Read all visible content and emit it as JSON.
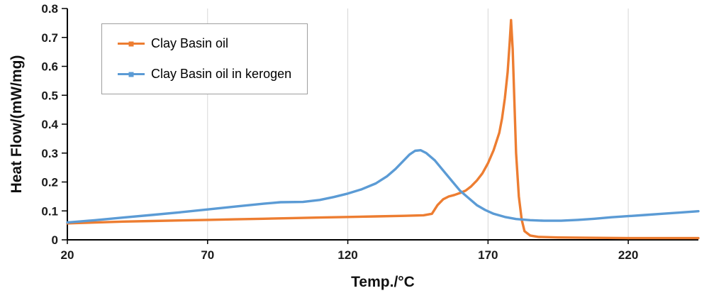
{
  "chart_data": {
    "type": "line",
    "title": "",
    "xlabel": "Temp./°C",
    "ylabel": "Heat Flow/(mW/mg)",
    "xlim": [
      20,
      245
    ],
    "ylim": [
      0,
      0.8
    ],
    "xticks": [
      20,
      70,
      120,
      170,
      220
    ],
    "yticks": [
      0,
      0.1,
      0.2,
      0.3,
      0.4,
      0.5,
      0.6,
      0.7,
      0.8
    ],
    "ytick_labels": [
      "0",
      "0.1",
      "0.2",
      "0.3",
      "0.4",
      "0.5",
      "0.6",
      "0.7",
      "0.8"
    ],
    "grid": "vertical",
    "grid_color": "#d6d6d6",
    "axis_color": "#000000",
    "text_color": "#1a1a1a",
    "legend_position": "top-left",
    "series": [
      {
        "name": "Clay Basin oil",
        "color": "#ED7D31",
        "points": [
          [
            20,
            0.057
          ],
          [
            30,
            0.06
          ],
          [
            40,
            0.063
          ],
          [
            50,
            0.065
          ],
          [
            60,
            0.067
          ],
          [
            70,
            0.069
          ],
          [
            80,
            0.071
          ],
          [
            90,
            0.073
          ],
          [
            100,
            0.075
          ],
          [
            110,
            0.077
          ],
          [
            120,
            0.079
          ],
          [
            130,
            0.081
          ],
          [
            140,
            0.083
          ],
          [
            147,
            0.085
          ],
          [
            150,
            0.09
          ],
          [
            152,
            0.12
          ],
          [
            154,
            0.14
          ],
          [
            156,
            0.15
          ],
          [
            158,
            0.155
          ],
          [
            160,
            0.162
          ],
          [
            162,
            0.17
          ],
          [
            164,
            0.185
          ],
          [
            166,
            0.205
          ],
          [
            168,
            0.23
          ],
          [
            170,
            0.265
          ],
          [
            172,
            0.31
          ],
          [
            174,
            0.37
          ],
          [
            175,
            0.42
          ],
          [
            176,
            0.49
          ],
          [
            177,
            0.58
          ],
          [
            177.7,
            0.68
          ],
          [
            178.2,
            0.76
          ],
          [
            178.8,
            0.66
          ],
          [
            179.4,
            0.48
          ],
          [
            180,
            0.3
          ],
          [
            181,
            0.15
          ],
          [
            182,
            0.07
          ],
          [
            183,
            0.03
          ],
          [
            185,
            0.015
          ],
          [
            188,
            0.01
          ],
          [
            195,
            0.008
          ],
          [
            205,
            0.007
          ],
          [
            220,
            0.006
          ],
          [
            235,
            0.006
          ],
          [
            245,
            0.006
          ]
        ]
      },
      {
        "name": "Clay Basin oil in kerogen",
        "color": "#5B9BD5",
        "points": [
          [
            20,
            0.06
          ],
          [
            30,
            0.068
          ],
          [
            40,
            0.077
          ],
          [
            50,
            0.086
          ],
          [
            60,
            0.095
          ],
          [
            70,
            0.105
          ],
          [
            80,
            0.115
          ],
          [
            90,
            0.125
          ],
          [
            96,
            0.13
          ],
          [
            104,
            0.131
          ],
          [
            110,
            0.138
          ],
          [
            115,
            0.148
          ],
          [
            120,
            0.16
          ],
          [
            125,
            0.175
          ],
          [
            130,
            0.195
          ],
          [
            134,
            0.22
          ],
          [
            137,
            0.245
          ],
          [
            140,
            0.275
          ],
          [
            142,
            0.295
          ],
          [
            144,
            0.308
          ],
          [
            146,
            0.31
          ],
          [
            148,
            0.3
          ],
          [
            151,
            0.275
          ],
          [
            154,
            0.24
          ],
          [
            157,
            0.205
          ],
          [
            160,
            0.17
          ],
          [
            163,
            0.145
          ],
          [
            166,
            0.12
          ],
          [
            169,
            0.103
          ],
          [
            172,
            0.09
          ],
          [
            176,
            0.079
          ],
          [
            180,
            0.072
          ],
          [
            185,
            0.068
          ],
          [
            190,
            0.066
          ],
          [
            196,
            0.066
          ],
          [
            202,
            0.069
          ],
          [
            208,
            0.073
          ],
          [
            214,
            0.078
          ],
          [
            220,
            0.082
          ],
          [
            226,
            0.086
          ],
          [
            232,
            0.09
          ],
          [
            238,
            0.094
          ],
          [
            245,
            0.099
          ]
        ]
      }
    ]
  }
}
